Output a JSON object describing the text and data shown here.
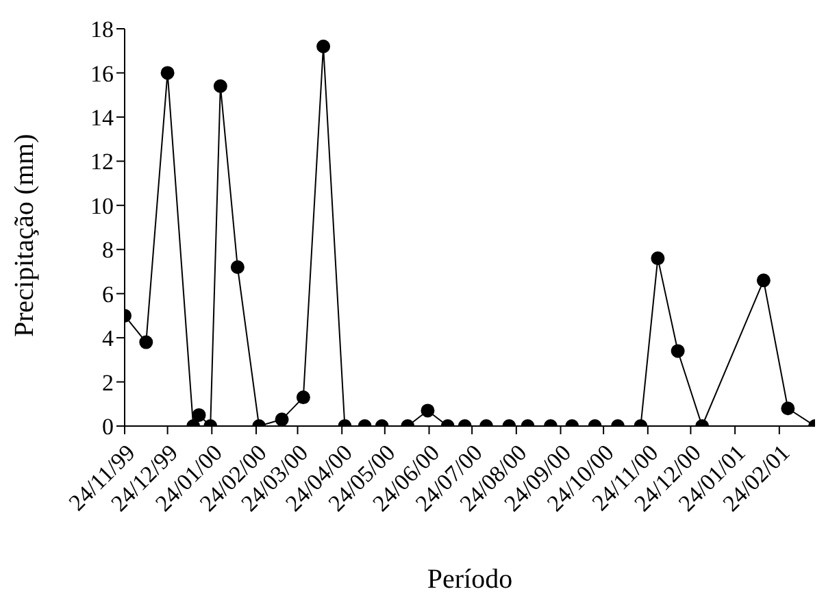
{
  "chart_data": {
    "type": "line",
    "xlabel": "Período",
    "ylabel": "Precipitação (mm)",
    "x": [
      "1999-11-24",
      "1999-12-09",
      "1999-12-24",
      "2000-01-11",
      "2000-01-15",
      "2000-01-23",
      "2000-01-30",
      "2000-02-11",
      "2000-02-26",
      "2000-03-13",
      "2000-03-28",
      "2000-04-11",
      "2000-04-26",
      "2000-05-10",
      "2000-05-22",
      "2000-06-09",
      "2000-06-23",
      "2000-07-07",
      "2000-07-19",
      "2000-08-03",
      "2000-08-19",
      "2000-09-01",
      "2000-09-17",
      "2000-10-02",
      "2000-10-18",
      "2000-11-03",
      "2000-11-19",
      "2000-12-01",
      "2000-12-15",
      "2001-01-01",
      "2001-02-13",
      "2001-03-02",
      "2001-03-21"
    ],
    "series": [
      {
        "color": "#000000",
        "values": [
          5.0,
          3.8,
          16.0,
          0,
          0.5,
          0,
          15.4,
          7.2,
          0,
          0.3,
          1.3,
          17.2,
          0,
          0,
          0,
          0,
          0.7,
          0,
          0,
          0,
          0,
          0,
          0,
          0,
          0,
          0,
          0,
          7.6,
          3.4,
          0,
          6.6,
          0.8,
          0
        ]
      }
    ],
    "xlim": [
      "1999-11-24",
      "2001-03-21"
    ],
    "xticks": [
      {
        "value": "1999-11-24",
        "label": "24/11/99"
      },
      {
        "value": "1999-12-24",
        "label": "24/12/99"
      },
      {
        "value": "2000-01-24",
        "label": "24/01/00"
      },
      {
        "value": "2000-02-24",
        "label": "24/02/00"
      },
      {
        "value": "2000-03-24",
        "label": "24/03/00"
      },
      {
        "value": "2000-04-24",
        "label": "24/04/00"
      },
      {
        "value": "2000-05-24",
        "label": "24/05/00"
      },
      {
        "value": "2000-06-24",
        "label": "24/06/00"
      },
      {
        "value": "2000-07-24",
        "label": "24/07/00"
      },
      {
        "value": "2000-08-24",
        "label": "24/08/00"
      },
      {
        "value": "2000-09-24",
        "label": "24/09/00"
      },
      {
        "value": "2000-10-24",
        "label": "24/10/00"
      },
      {
        "value": "2000-11-24",
        "label": "24/11/00"
      },
      {
        "value": "2000-12-24",
        "label": "24/12/00"
      },
      {
        "value": "2001-01-24",
        "label": "24/01/01"
      },
      {
        "value": "2001-02-24",
        "label": "24/02/01"
      }
    ],
    "ylim": [
      0,
      18
    ],
    "yticks": [
      0,
      2,
      4,
      6,
      8,
      10,
      12,
      14,
      16,
      18
    ],
    "grid": false,
    "legend": false,
    "marker": "circle",
    "line_style": "solid"
  }
}
